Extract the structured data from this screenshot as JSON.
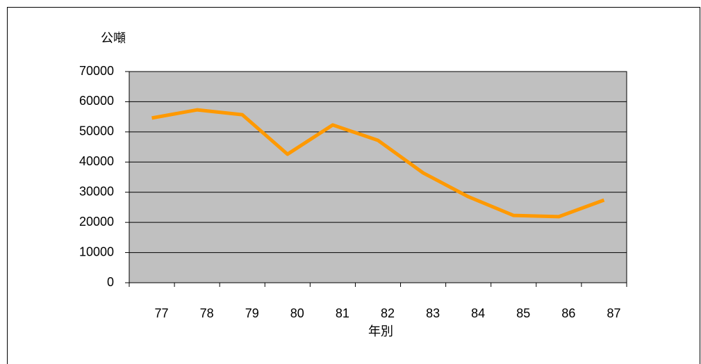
{
  "chart_data": {
    "type": "line",
    "y_axis_label": "公噸",
    "x_axis_label": "年別",
    "categories": [
      "77",
      "78",
      "79",
      "80",
      "81",
      "82",
      "83",
      "84",
      "85",
      "86",
      "87"
    ],
    "series": [
      {
        "name": "公噸",
        "color": "#ff9900",
        "values": [
          54600,
          57300,
          55700,
          42600,
          52300,
          47200,
          36400,
          28500,
          22300,
          21900,
          27400
        ]
      }
    ],
    "ylim": [
      0,
      70000
    ],
    "yticks": [
      0,
      10000,
      20000,
      30000,
      40000,
      50000,
      60000,
      70000
    ],
    "grid": true,
    "plot_background": "#c0c0c0"
  }
}
